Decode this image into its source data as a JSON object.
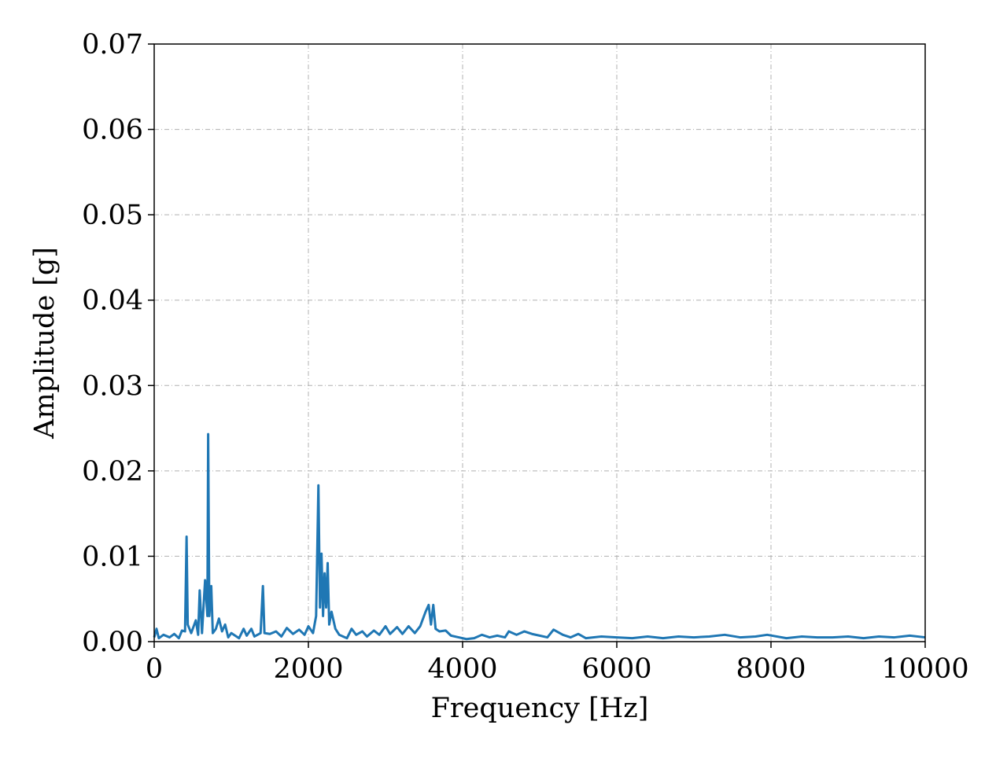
{
  "chart_data": {
    "type": "line",
    "x_label": "Frequency [Hz]",
    "y_label": "Amplitude [g]",
    "x": [
      0,
      30,
      60,
      120,
      200,
      260,
      320,
      360,
      400,
      420,
      435,
      480,
      540,
      570,
      590,
      620,
      660,
      690,
      700,
      715,
      740,
      760,
      800,
      840,
      880,
      920,
      960,
      1000,
      1100,
      1160,
      1200,
      1260,
      1300,
      1380,
      1410,
      1430,
      1500,
      1580,
      1650,
      1720,
      1800,
      1880,
      1950,
      2000,
      2060,
      2100,
      2130,
      2150,
      2170,
      2190,
      2210,
      2230,
      2250,
      2270,
      2300,
      2350,
      2400,
      2450,
      2500,
      2560,
      2620,
      2700,
      2760,
      2850,
      2920,
      3000,
      3060,
      3150,
      3220,
      3300,
      3380,
      3450,
      3520,
      3560,
      3590,
      3620,
      3650,
      3700,
      3780,
      3850,
      3950,
      4050,
      4150,
      4250,
      4350,
      4450,
      4550,
      4600,
      4700,
      4800,
      4900,
      5000,
      5100,
      5180,
      5300,
      5400,
      5500,
      5600,
      5800,
      6000,
      6200,
      6400,
      6600,
      6800,
      7000,
      7200,
      7400,
      7600,
      7800,
      7950,
      8200,
      8400,
      8600,
      8800,
      9000,
      9200,
      9400,
      9600,
      9800,
      10000
    ],
    "values": [
      0.0005,
      0.0015,
      0.0004,
      0.0008,
      0.0005,
      0.0009,
      0.0004,
      0.0013,
      0.0012,
      0.0123,
      0.002,
      0.001,
      0.0025,
      0.0008,
      0.006,
      0.001,
      0.0072,
      0.003,
      0.0243,
      0.003,
      0.0065,
      0.001,
      0.0015,
      0.0027,
      0.0012,
      0.002,
      0.0005,
      0.001,
      0.0004,
      0.0015,
      0.0007,
      0.0015,
      0.0006,
      0.001,
      0.0065,
      0.001,
      0.0009,
      0.0012,
      0.0006,
      0.0016,
      0.0009,
      0.0014,
      0.0008,
      0.0018,
      0.001,
      0.003,
      0.0183,
      0.004,
      0.0103,
      0.003,
      0.008,
      0.004,
      0.0092,
      0.002,
      0.0035,
      0.0015,
      0.0008,
      0.0006,
      0.0004,
      0.0015,
      0.0008,
      0.0012,
      0.0006,
      0.0013,
      0.0008,
      0.0018,
      0.0009,
      0.0017,
      0.0009,
      0.0018,
      0.001,
      0.0018,
      0.0035,
      0.0043,
      0.002,
      0.0043,
      0.0015,
      0.0012,
      0.0013,
      0.0007,
      0.0005,
      0.0003,
      0.0004,
      0.0008,
      0.0005,
      0.0007,
      0.0005,
      0.0012,
      0.0008,
      0.0012,
      0.0009,
      0.0007,
      0.0005,
      0.0014,
      0.0008,
      0.0005,
      0.0009,
      0.0004,
      0.0006,
      0.0005,
      0.0004,
      0.0006,
      0.0004,
      0.0006,
      0.0005,
      0.0006,
      0.0008,
      0.0005,
      0.0006,
      0.0008,
      0.0004,
      0.0006,
      0.0005,
      0.0005,
      0.0006,
      0.0004,
      0.0006,
      0.0005,
      0.0007,
      0.0005
    ],
    "color": "#1f77b4",
    "xlim": [
      0,
      10000
    ],
    "xticks": [
      0,
      2000,
      4000,
      6000,
      8000,
      10000
    ],
    "ylim": [
      0,
      0.07
    ],
    "yticks": [
      {
        "value": 0,
        "label": "0.00"
      },
      0.01,
      0.02,
      0.03,
      0.04,
      0.05,
      0.06,
      0.07
    ],
    "grid": true
  }
}
